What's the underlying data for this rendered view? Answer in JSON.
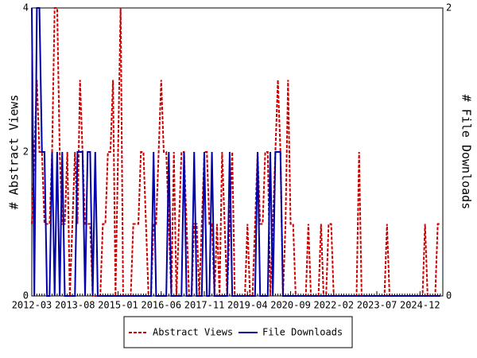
{
  "chart_data": {
    "type": "line",
    "categories": [
      "2012-03",
      null,
      null,
      null,
      null,
      null,
      null,
      null,
      null,
      null,
      null,
      null,
      null,
      null,
      null,
      null,
      null,
      "2013-08",
      null,
      null,
      null,
      null,
      null,
      null,
      null,
      null,
      null,
      null,
      null,
      null,
      null,
      null,
      null,
      null,
      "2015-01",
      null,
      null,
      null,
      null,
      null,
      null,
      null,
      null,
      null,
      null,
      null,
      null,
      null,
      null,
      null,
      null,
      "2016-06",
      null,
      null,
      null,
      null,
      null,
      null,
      null,
      null,
      null,
      null,
      null,
      null,
      null,
      null,
      null,
      null,
      "2017-11",
      null,
      null,
      null,
      null,
      null,
      null,
      null,
      null,
      null,
      null,
      null,
      null,
      null,
      null,
      null,
      null,
      "2019-04",
      null,
      null,
      null,
      null,
      null,
      null,
      null,
      null,
      null,
      null,
      null,
      null,
      null,
      null,
      null,
      null,
      "2020-09",
      null,
      null,
      null,
      null,
      null,
      null,
      null,
      null,
      null,
      null,
      null,
      null,
      null,
      null,
      null,
      null,
      "2022-02",
      null,
      null,
      null,
      null,
      null,
      null,
      null,
      null,
      null,
      null,
      null,
      null,
      null,
      null,
      null,
      null,
      "2023-07",
      null,
      null,
      null,
      null,
      null,
      null,
      null,
      null,
      null,
      null,
      null,
      null,
      null,
      null,
      null,
      null,
      "2024-12",
      null,
      null,
      null,
      null,
      null,
      null,
      null,
      null
    ],
    "y_label": "# Abstract Views",
    "y2_label": "# File Downloads",
    "ylim": [
      0,
      4
    ],
    "yticks": [
      0,
      2,
      4
    ],
    "y2lim": [
      0,
      2
    ],
    "y2ticks": [
      0,
      2
    ],
    "legend": "bottom",
    "series": [
      {
        "name": "Abstract Views",
        "color": "#cc0000",
        "dash": true,
        "values": [
          1,
          2,
          3,
          2,
          2,
          1,
          1,
          1,
          2,
          4,
          4,
          2,
          1,
          1,
          2,
          0,
          1,
          2,
          1,
          3,
          2,
          1,
          1,
          1,
          0,
          0,
          0,
          0,
          1,
          1,
          2,
          2,
          3,
          0,
          2,
          4,
          0,
          0,
          0,
          0,
          1,
          1,
          1,
          2,
          2,
          1,
          0,
          0,
          1,
          1,
          2,
          3,
          2,
          2,
          1,
          0,
          2,
          0,
          1,
          2,
          2,
          1,
          0,
          0,
          1,
          1,
          0,
          1,
          2,
          2,
          1,
          1,
          0,
          1,
          0,
          2,
          1,
          0,
          1,
          2,
          0,
          0,
          0,
          0,
          0,
          1,
          0,
          0,
          1,
          2,
          1,
          1,
          2,
          2,
          0,
          1,
          2,
          3,
          2,
          0,
          1,
          3,
          1,
          1,
          0,
          0,
          0,
          0,
          0,
          1,
          0,
          0,
          0,
          0,
          1,
          0,
          0,
          1,
          1,
          0,
          0,
          0,
          0,
          0,
          0,
          0,
          0,
          0,
          0,
          2,
          0,
          0,
          0,
          0,
          0,
          0,
          0,
          0,
          0,
          0,
          1,
          0,
          0,
          0,
          0,
          0,
          0,
          0,
          0,
          0,
          0,
          0,
          0,
          0,
          0,
          1,
          0,
          0,
          0,
          0,
          1,
          1
        ]
      },
      {
        "name": "File Downloads",
        "color": "#0000aa",
        "axis": "y2",
        "values": [
          2,
          0,
          2,
          2,
          1,
          1,
          0,
          0,
          1,
          0,
          1,
          0,
          1,
          0,
          0,
          0,
          0,
          0,
          1,
          1,
          1,
          0,
          1,
          1,
          0,
          1,
          0,
          0,
          0,
          0,
          0,
          0,
          0,
          0,
          0,
          0,
          0,
          0,
          0,
          0,
          0,
          0,
          0,
          0,
          0,
          0,
          0,
          0,
          1,
          0,
          0,
          0,
          0,
          0,
          1,
          0,
          0,
          0,
          0,
          0,
          1,
          0,
          0,
          0,
          1,
          0,
          0,
          0,
          1,
          0,
          0,
          1,
          0,
          0,
          0,
          0,
          0,
          0,
          1,
          0,
          0,
          0,
          0,
          0,
          0,
          0,
          0,
          0,
          0,
          1,
          0,
          0,
          0,
          0,
          1,
          0,
          1,
          1,
          1,
          0,
          0,
          0,
          0,
          0,
          0,
          0,
          0,
          0,
          0,
          0,
          0,
          0,
          0,
          0,
          0,
          0,
          0,
          0,
          0,
          0,
          0,
          0,
          0,
          0,
          0,
          0,
          0,
          0,
          0,
          0,
          0,
          0,
          0,
          0,
          0,
          0,
          0,
          0,
          0,
          0,
          0,
          0,
          0,
          0,
          0,
          0,
          0,
          0,
          0,
          0,
          0,
          0,
          0,
          0,
          0,
          0,
          0,
          0,
          0,
          0,
          0,
          0
        ]
      }
    ]
  }
}
